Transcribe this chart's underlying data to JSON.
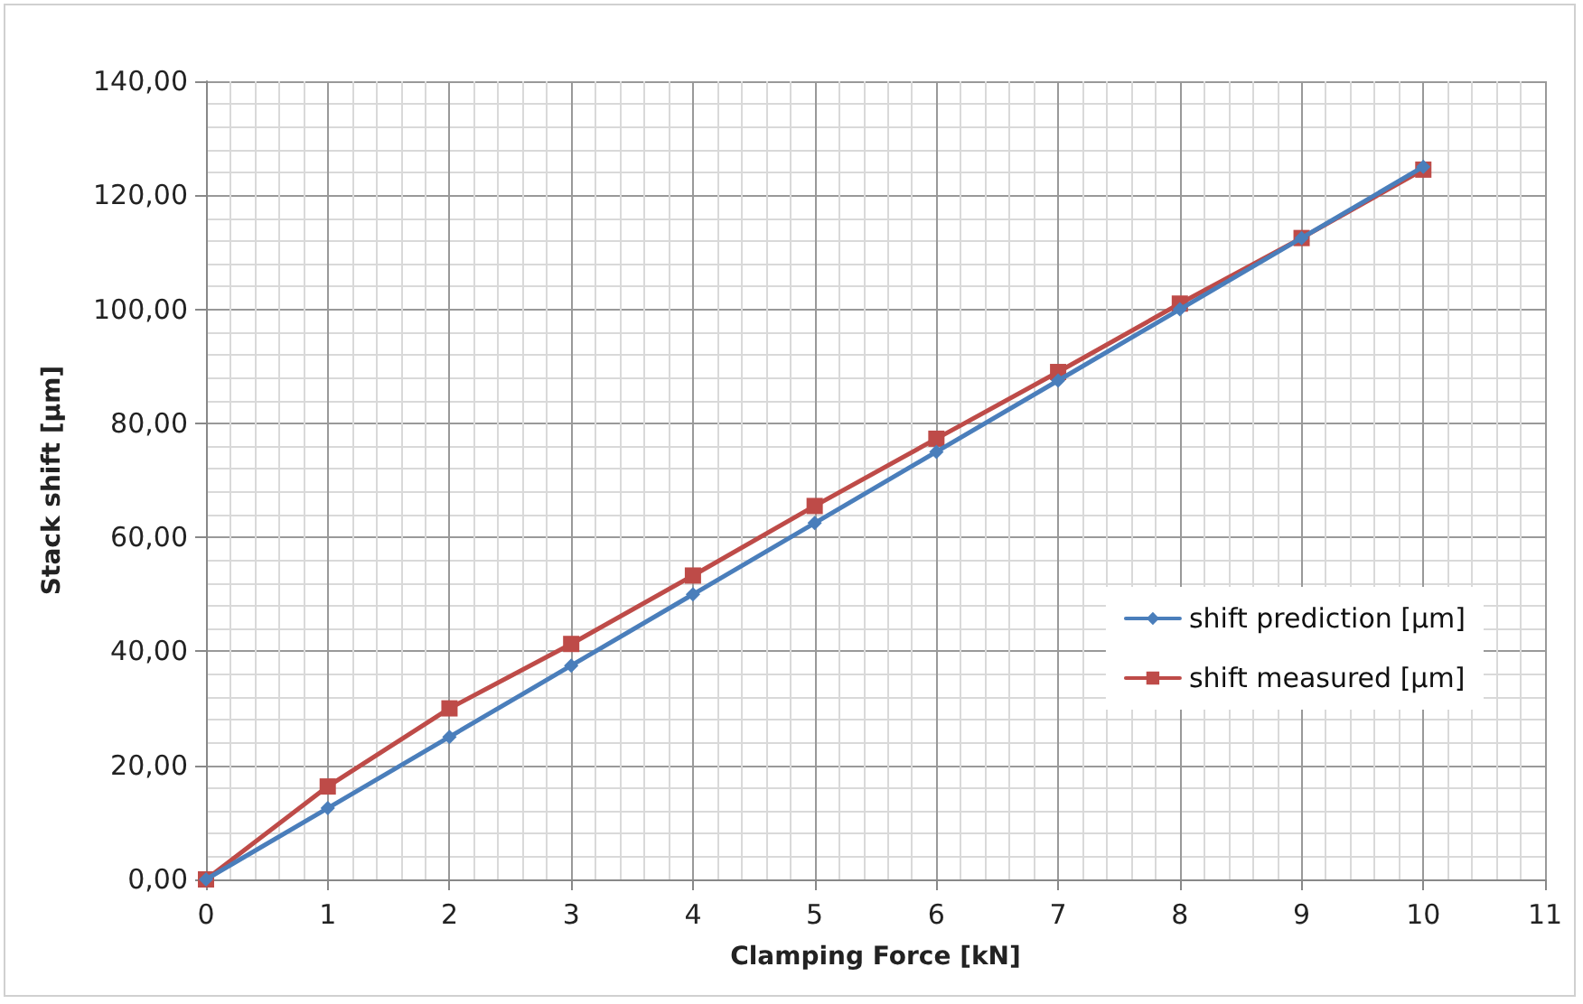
{
  "chart_data": {
    "type": "line",
    "xlabel": "Clamping Force [kN]",
    "ylabel": "Stack shift [µm]",
    "x": [
      0,
      1,
      2,
      3,
      4,
      5,
      6,
      7,
      8,
      9,
      10
    ],
    "series": [
      {
        "name": "shift prediction [µm]",
        "color": "#4a7ebb",
        "marker": "diamond",
        "values": [
          0,
          12.5,
          25,
          37.5,
          50,
          62.5,
          75,
          87.5,
          100,
          112.5,
          125
        ]
      },
      {
        "name": "shift measured [µm]",
        "color": "#be4b48",
        "marker": "square",
        "values": [
          0,
          16.3,
          30,
          41.3,
          53.3,
          65.5,
          77.3,
          89,
          101,
          112.5,
          124.5
        ]
      }
    ],
    "xlim": [
      0,
      11
    ],
    "xticks": [
      0,
      1,
      2,
      3,
      4,
      5,
      6,
      7,
      8,
      9,
      10,
      11
    ],
    "ylim": [
      0,
      140
    ],
    "yticks": [
      {
        "value": 0,
        "label": "0,00"
      },
      {
        "value": 20,
        "label": "20,00"
      },
      {
        "value": 40,
        "label": "40,00"
      },
      {
        "value": 60,
        "label": "60,00"
      },
      {
        "value": 80,
        "label": "80,00"
      },
      {
        "value": 100,
        "label": "100,00"
      },
      {
        "value": 120,
        "label": "120,00"
      },
      {
        "value": 140,
        "label": "140,00"
      }
    ],
    "grid": true,
    "legend": "right",
    "line_style": "solid"
  }
}
